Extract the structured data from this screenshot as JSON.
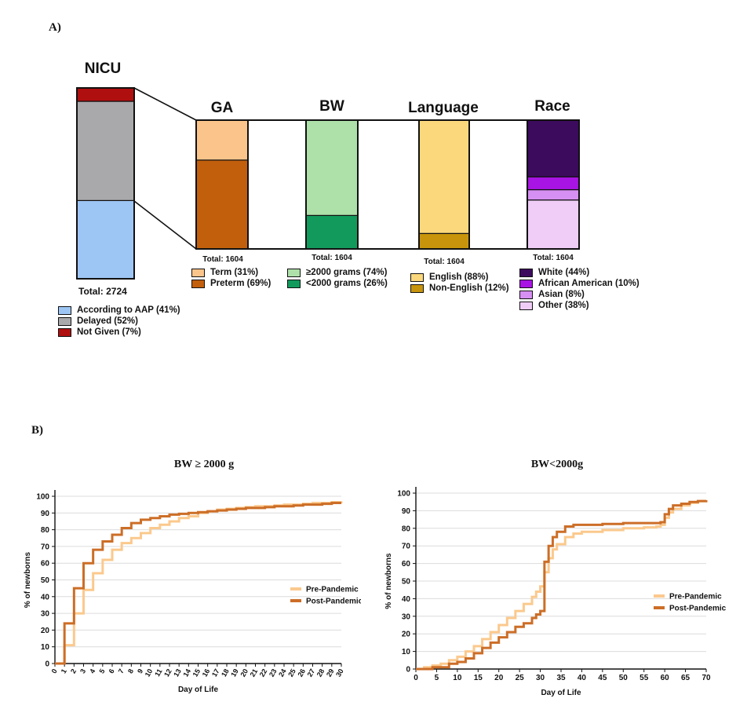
{
  "panels": {
    "a_label": "A)",
    "b_label": "B)"
  },
  "colors": {
    "aap": "#9dc6f5",
    "delayed": "#a9a9ab",
    "notgiven": "#b00f0f",
    "term": "#fbc48a",
    "preterm": "#c25f0c",
    "bw_ge": "#aee0a9",
    "bw_lt": "#129a5d",
    "english": "#fbd87c",
    "nonenglish": "#c8940b",
    "white": "#3c0b5e",
    "aa": "#a814e3",
    "asian": "#d68ff2",
    "other": "#efcdf7",
    "pre": "#fbc98d",
    "post": "#cc6e27",
    "grid": "#dcdcdc"
  },
  "chart_data": [
    {
      "type": "stacked_bar_breakdown",
      "bars": [
        {
          "name": "NICU",
          "title": "NICU",
          "total_label": "Total: 2724",
          "segments": [
            {
              "label": "According to AAP (41%)",
              "value": 41,
              "color_key": "aap"
            },
            {
              "label": "Delayed (52%)",
              "value": 52,
              "color_key": "delayed"
            },
            {
              "label": "Not Given (7%)",
              "value": 7,
              "color_key": "notgiven"
            }
          ]
        },
        {
          "name": "GA",
          "title": "GA",
          "total_label": "Total: 1604",
          "segments": [
            {
              "label": "Preterm (69%)",
              "value": 69,
              "color_key": "preterm"
            },
            {
              "label": "Term (31%)",
              "value": 31,
              "color_key": "term"
            }
          ],
          "legend_order": [
            "Term (31%)",
            "Preterm (69%)"
          ]
        },
        {
          "name": "BW",
          "title": "BW",
          "total_label": "Total: 1604",
          "segments": [
            {
              "label": "<2000 grams (26%)",
              "value": 26,
              "color_key": "bw_lt"
            },
            {
              "label": "≥2000 grams (74%)",
              "value": 74,
              "color_key": "bw_ge"
            }
          ],
          "legend_order": [
            "≥2000 grams (74%)",
            "<2000 grams (26%)"
          ]
        },
        {
          "name": "Language",
          "title": "Language",
          "total_label": "Total: 1604",
          "segments": [
            {
              "label": "Non-English (12%)",
              "value": 12,
              "color_key": "nonenglish"
            },
            {
              "label": "English (88%)",
              "value": 88,
              "color_key": "english"
            }
          ],
          "legend_order": [
            "English (88%)",
            "Non-English (12%)"
          ]
        },
        {
          "name": "Race",
          "title": "Race",
          "total_label": "Total: 1604",
          "segments": [
            {
              "label": "Other (38%)",
              "value": 38,
              "color_key": "other"
            },
            {
              "label": "Asian (8%)",
              "value": 8,
              "color_key": "asian"
            },
            {
              "label": "African American (10%)",
              "value": 10,
              "color_key": "aa"
            },
            {
              "label": "White (44%)",
              "value": 44,
              "color_key": "white"
            }
          ],
          "legend_order": [
            "White (44%)",
            "African American (10%)",
            "Asian (8%)",
            "Other (38%)"
          ]
        }
      ]
    },
    {
      "type": "line",
      "step": true,
      "title": "BW ≥ 2000 g",
      "xlabel": "Day of Life",
      "ylabel": "% of newborns",
      "xlim": [
        0,
        30
      ],
      "ylim": [
        0,
        100
      ],
      "xticks": [
        0,
        1,
        2,
        3,
        4,
        5,
        6,
        7,
        8,
        9,
        10,
        11,
        12,
        13,
        14,
        15,
        16,
        17,
        18,
        19,
        20,
        21,
        22,
        23,
        24,
        25,
        26,
        27,
        28,
        29,
        30
      ],
      "yticks": [
        0,
        10,
        20,
        30,
        40,
        50,
        60,
        70,
        80,
        90,
        100
      ],
      "legend_position": "right",
      "series": [
        {
          "name": "Pre-Pandemic",
          "color_key": "pre",
          "x": [
            0,
            1,
            2,
            3,
            4,
            5,
            6,
            7,
            8,
            9,
            10,
            11,
            12,
            13,
            14,
            15,
            16,
            17,
            18,
            19,
            20,
            21,
            22,
            23,
            24,
            25,
            26,
            27,
            28,
            29,
            30
          ],
          "y": [
            0,
            11,
            30,
            44,
            54,
            62,
            68,
            72,
            75,
            78,
            81,
            83,
            85,
            87,
            88,
            90,
            91,
            92,
            92.5,
            93,
            93.5,
            94,
            94,
            94.5,
            95,
            95,
            95.5,
            96,
            96,
            96.5,
            97
          ]
        },
        {
          "name": "Post-Pandemic",
          "color_key": "post",
          "x": [
            0,
            1,
            2,
            3,
            4,
            5,
            6,
            7,
            8,
            9,
            10,
            11,
            12,
            13,
            14,
            15,
            16,
            17,
            18,
            19,
            20,
            21,
            22,
            23,
            24,
            25,
            26,
            27,
            28,
            29,
            30
          ],
          "y": [
            0,
            24,
            45,
            60,
            68,
            73,
            77,
            81,
            84,
            86,
            87,
            88,
            89,
            89.5,
            90,
            90.5,
            91,
            91.5,
            92,
            92.5,
            93,
            93,
            93.5,
            94,
            94,
            94.5,
            95,
            95,
            95.5,
            96,
            96
          ]
        }
      ]
    },
    {
      "type": "line",
      "step": true,
      "title": "BW<2000g",
      "xlabel": "Day of Life",
      "ylabel": "% of newborns",
      "xlim": [
        0,
        70
      ],
      "ylim": [
        0,
        100
      ],
      "xticks": [
        0,
        5,
        10,
        15,
        20,
        25,
        30,
        35,
        40,
        45,
        50,
        55,
        60,
        65,
        70
      ],
      "yticks": [
        0,
        10,
        20,
        30,
        40,
        50,
        60,
        70,
        80,
        90,
        100
      ],
      "legend_position": "right",
      "series": [
        {
          "name": "Pre-Pandemic",
          "color_key": "pre",
          "x": [
            0,
            2,
            4,
            6,
            8,
            10,
            12,
            14,
            16,
            18,
            20,
            22,
            24,
            26,
            28,
            29,
            30,
            31,
            32,
            33,
            34,
            36,
            38,
            40,
            45,
            50,
            55,
            58,
            59,
            60,
            61,
            62,
            64,
            66,
            68,
            70
          ],
          "y": [
            0,
            1,
            2,
            3,
            5,
            7,
            10,
            13,
            17,
            21,
            25,
            29,
            33,
            37,
            41,
            44,
            47,
            55,
            63,
            68,
            71,
            75,
            77,
            78,
            79,
            80,
            80.5,
            81,
            82,
            86,
            89,
            91,
            93,
            94.5,
            95.5,
            96
          ]
        },
        {
          "name": "Post-Pandemic",
          "color_key": "post",
          "x": [
            0,
            2,
            4,
            6,
            8,
            10,
            12,
            14,
            16,
            18,
            20,
            22,
            24,
            26,
            28,
            29,
            30,
            31,
            32,
            33,
            34,
            36,
            38,
            40,
            45,
            50,
            55,
            58,
            59,
            60,
            61,
            62,
            64,
            66,
            68,
            70
          ],
          "y": [
            0,
            0,
            1,
            1,
            3,
            4,
            6,
            9,
            12,
            15,
            18,
            21,
            24,
            26,
            29,
            31,
            33,
            61,
            70,
            75,
            78,
            81,
            82,
            82,
            82.5,
            83,
            83,
            83,
            83.5,
            88,
            91,
            93,
            94,
            95,
            95.5,
            96
          ]
        }
      ]
    }
  ]
}
